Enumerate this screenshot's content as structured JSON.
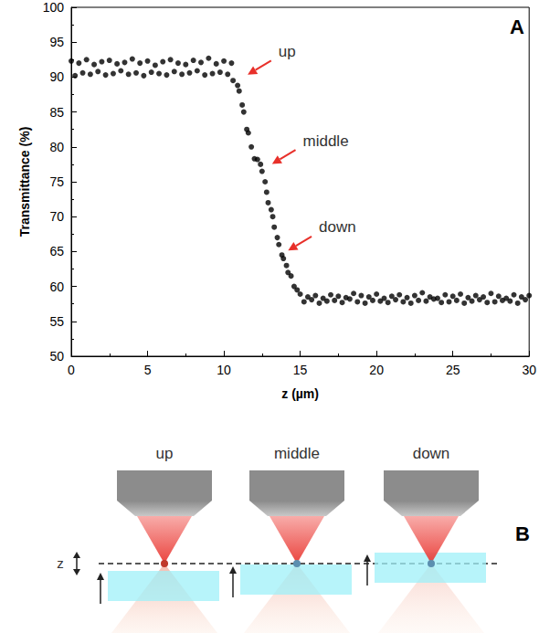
{
  "chart_data": {
    "type": "scatter",
    "panel_label": "A",
    "x_label": "z (µm)",
    "y_label": "Transmittance (%)",
    "x": [
      0,
      0.5,
      1,
      1.5,
      2,
      2.5,
      3,
      3.5,
      4,
      4.5,
      5,
      5.5,
      6,
      6.5,
      7,
      7.5,
      8,
      8.5,
      9,
      9.5,
      10,
      10.5,
      0.25,
      0.75,
      1.25,
      1.75,
      2.25,
      2.75,
      3.25,
      3.75,
      4.25,
      4.75,
      5.25,
      5.75,
      6.25,
      6.75,
      7.25,
      7.75,
      8.25,
      8.75,
      9.25,
      9.75,
      10.25,
      10.6,
      10.9,
      11,
      11.2,
      11.3,
      11.5,
      11.6,
      11.8,
      12,
      12.2,
      12.4,
      12.5,
      12.7,
      12.8,
      12.9,
      13.1,
      13.2,
      13.3,
      13.5,
      13.6,
      13.8,
      13.9,
      14.1,
      14.2,
      14.4,
      14.6,
      14.8,
      15,
      15.5,
      16,
      16.5,
      17,
      17.5,
      18,
      18.5,
      19,
      19.5,
      20,
      20.5,
      21,
      21.5,
      22,
      22.5,
      23,
      23.5,
      24,
      24.5,
      25,
      25.5,
      26,
      26.5,
      27,
      27.5,
      28,
      28.5,
      29,
      29.5,
      30,
      15.25,
      15.75,
      16.25,
      16.75,
      17.25,
      17.75,
      18.25,
      18.75,
      19.25,
      19.75,
      20.25,
      20.75,
      21.25,
      21.75,
      22.25,
      22.75,
      23.25,
      23.75,
      24.25,
      24.75,
      25.25,
      25.75,
      26.25,
      26.75,
      27.25,
      27.75,
      28.25,
      28.75,
      29.25,
      29.75
    ],
    "values": [
      92.3,
      92.0,
      92.5,
      91.8,
      92.2,
      92.4,
      91.9,
      92.1,
      92.6,
      92.0,
      92.3,
      91.7,
      92.2,
      92.5,
      92.0,
      91.8,
      92.4,
      92.1,
      92.7,
      91.9,
      92.3,
      92.0,
      90.2,
      90.6,
      90.4,
      90.8,
      90.3,
      90.5,
      90.9,
      90.4,
      90.6,
      90.2,
      90.7,
      90.5,
      90.3,
      90.8,
      90.4,
      90.6,
      90.9,
      90.3,
      90.5,
      90.7,
      90.4,
      89.5,
      88.8,
      88.0,
      86.0,
      85.0,
      82.5,
      82.0,
      80.0,
      78.3,
      78.2,
      77.5,
      76.5,
      75.0,
      73.5,
      72.0,
      71.0,
      70.0,
      68.5,
      67.0,
      66.0,
      64.5,
      64.0,
      63.0,
      62.0,
      61.5,
      60.0,
      59.5,
      58.9,
      58.5,
      58.7,
      58.3,
      58.8,
      58.6,
      58.4,
      59.0,
      58.7,
      58.5,
      58.9,
      58.3,
      58.6,
      58.8,
      58.4,
      58.7,
      59.1,
      58.5,
      58.3,
      58.8,
      58.6,
      58.9,
      58.4,
      58.7,
      58.5,
      59.0,
      58.6,
      58.3,
      58.8,
      58.5,
      58.7,
      57.8,
      58.1,
      57.6,
      57.9,
      58.0,
      57.7,
      58.2,
      57.8,
      57.6,
      58.0,
      57.9,
      57.7,
      58.1,
      57.8,
      57.6,
      58.0,
      57.9,
      58.2,
      57.7,
      57.8,
      58.0,
      57.6,
      57.9,
      58.1,
      57.7,
      57.8,
      58.0,
      57.9,
      57.6,
      58.1
    ],
    "color": "#000000",
    "marker": "circle",
    "xlim": [
      0,
      30
    ],
    "xticks": [
      0,
      5,
      10,
      15,
      20,
      25,
      30
    ],
    "ylim": [
      50,
      100
    ],
    "yticks": [
      50,
      55,
      60,
      65,
      70,
      75,
      80,
      85,
      90,
      95,
      100
    ],
    "grid": false,
    "annotations": [
      {
        "text": "up",
        "x": 11.3,
        "y": 90.0,
        "color": "#e8302a"
      },
      {
        "text": "middle",
        "x": 12.9,
        "y": 77.2,
        "color": "#e8302a"
      },
      {
        "text": "down",
        "x": 13.95,
        "y": 64.8,
        "color": "#e8302a"
      }
    ]
  },
  "diagram": {
    "panel_label": "B",
    "axis_label": "z",
    "stages": [
      "up",
      "middle",
      "down"
    ]
  }
}
